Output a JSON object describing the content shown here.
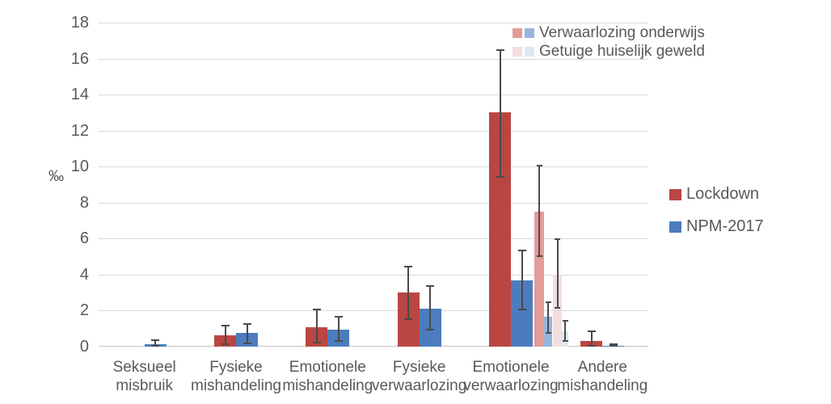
{
  "chart_data": {
    "type": "bar",
    "title": "",
    "unit_label": "‰",
    "ylabel": "‰",
    "xlabel": "",
    "ylim": [
      0,
      18
    ],
    "yticks": [
      0,
      2,
      4,
      6,
      8,
      10,
      12,
      14,
      16,
      18
    ],
    "grid": true,
    "legend_position": "right and top-right",
    "error_bars": true,
    "categories": [
      "Seksueel misbruik",
      "Fysieke mishandeling",
      "Emotionele mishandeling",
      "Fysieke verwaarlozing",
      "Emotionele verwaarlozing",
      "Andere mishandeling"
    ],
    "category_lines": [
      [
        "Seksueel",
        "misbruik"
      ],
      [
        "Fysieke",
        "mishandeling"
      ],
      [
        "Emotionele",
        "mishandeling"
      ],
      [
        "Fysieke",
        "verwaarlozing"
      ],
      [
        "Emotionele",
        "verwaarlozing"
      ],
      [
        "Andere",
        "mishandeling"
      ]
    ],
    "series": [
      {
        "name": "Lockdown",
        "color": "#BA4642",
        "values": [
          0,
          0.65,
          1.1,
          3.0,
          13.0,
          0.3
        ],
        "err_low": [
          null,
          0.1,
          0.2,
          1.5,
          9.4,
          0.0
        ],
        "err_high": [
          null,
          1.2,
          2.1,
          4.5,
          16.5,
          0.9
        ]
      },
      {
        "name": "NPM-2017",
        "color": "#4C7CBE",
        "values": [
          0.15,
          0.75,
          0.95,
          2.1,
          3.7,
          0.05
        ],
        "err_low": [
          0.0,
          0.15,
          0.25,
          0.9,
          2.0,
          0.0
        ],
        "err_high": [
          0.4,
          1.3,
          1.7,
          3.4,
          5.4,
          0.15
        ]
      },
      {
        "name": "Verwaarlozing onderwijs (Lockdown)",
        "color": "#E39C9A",
        "values": [
          null,
          null,
          null,
          null,
          7.5,
          null
        ],
        "err_low": [
          null,
          null,
          null,
          null,
          5.0,
          null
        ],
        "err_high": [
          null,
          null,
          null,
          null,
          10.1,
          null
        ]
      },
      {
        "name": "Verwaarlozing onderwijs (NPM-2017)",
        "color": "#97B5DB",
        "values": [
          null,
          null,
          null,
          null,
          1.65,
          null
        ],
        "err_low": [
          null,
          null,
          null,
          null,
          0.7,
          null
        ],
        "err_high": [
          null,
          null,
          null,
          null,
          2.5,
          null
        ]
      },
      {
        "name": "Getuige huiselijk geweld (Lockdown)",
        "color": "#F3DEDD",
        "values": [
          null,
          null,
          null,
          null,
          4.0,
          null
        ],
        "err_low": [
          null,
          null,
          null,
          null,
          2.1,
          null
        ],
        "err_high": [
          null,
          null,
          null,
          null,
          6.0,
          null
        ]
      },
      {
        "name": "Getuige huiselijk geweld (NPM-2017)",
        "color": "#DEE8F3",
        "values": [
          null,
          null,
          null,
          null,
          0.85,
          null
        ],
        "err_low": [
          null,
          null,
          null,
          null,
          0.25,
          null
        ],
        "err_high": [
          null,
          null,
          null,
          null,
          1.5,
          null
        ]
      }
    ],
    "legend_top": [
      {
        "label": "Verwaarlozing onderwijs",
        "colors": [
          "#E39C9A",
          "#97B5DB"
        ]
      },
      {
        "label": "Getuige huiselijk geweld",
        "colors": [
          "#F3DEDD",
          "#DEE8F3"
        ]
      }
    ],
    "legend_right": [
      {
        "label": "Lockdown",
        "color": "#BA4642"
      },
      {
        "label": "NPM-2017",
        "color": "#4C7CBE"
      }
    ]
  }
}
